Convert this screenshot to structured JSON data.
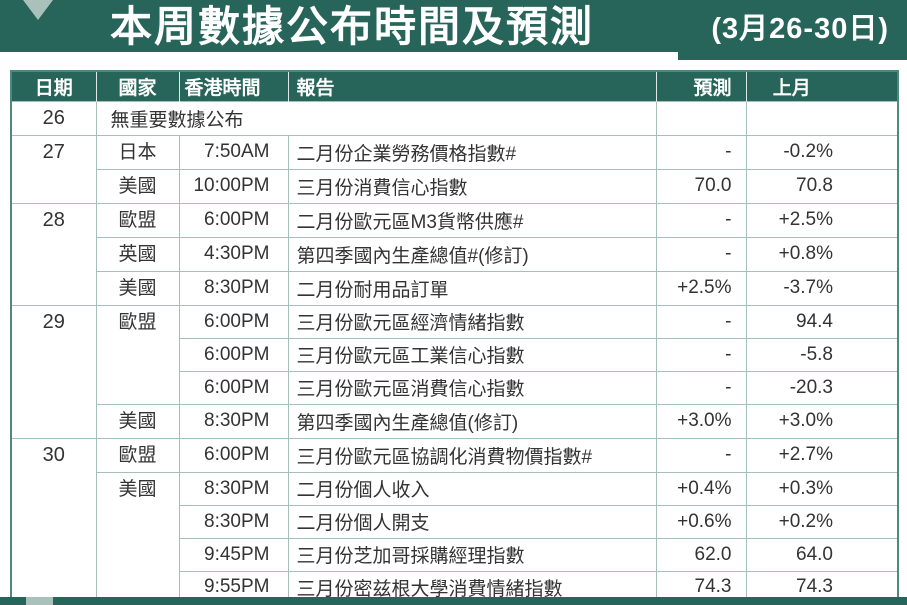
{
  "banner": {
    "title": "本周數據公布時間及預測",
    "date_range": "(3月26-30日)"
  },
  "colors": {
    "teal": "#276459",
    "sage": "#a9c0bb",
    "border": "#a3c0ba",
    "outer": "#4f887e",
    "ink": "#333333"
  },
  "table": {
    "headers": [
      {
        "key": "date",
        "label": "日期"
      },
      {
        "key": "country",
        "label": "國家"
      },
      {
        "key": "time",
        "label": "香港時間"
      },
      {
        "key": "report",
        "label": "報告"
      },
      {
        "key": "forecast",
        "label": "預測"
      },
      {
        "key": "last",
        "label": "上月"
      }
    ],
    "rows": [
      [
        {
          "kind": "date",
          "text": "26"
        },
        {
          "kind": "note",
          "text": "無重要數據公布",
          "colspan": 3
        },
        {
          "kind": "forecast",
          "text": ""
        },
        {
          "kind": "last",
          "text": ""
        }
      ],
      [
        {
          "kind": "date",
          "text": "27",
          "rowspan": 2
        },
        {
          "kind": "country",
          "text": "日本"
        },
        {
          "kind": "time",
          "text": "7:50AM"
        },
        {
          "kind": "report",
          "text": "二月份企業勞務價格指數#"
        },
        {
          "kind": "forecast",
          "text": "-"
        },
        {
          "kind": "last",
          "text": "-0.2%"
        }
      ],
      [
        {
          "kind": "country",
          "text": "美國"
        },
        {
          "kind": "time",
          "text": "10:00PM"
        },
        {
          "kind": "report",
          "text": "三月份消費信心指數"
        },
        {
          "kind": "forecast",
          "text": "70.0"
        },
        {
          "kind": "last",
          "text": "70.8"
        }
      ],
      [
        {
          "kind": "date",
          "text": "28",
          "rowspan": 3
        },
        {
          "kind": "country",
          "text": "歐盟"
        },
        {
          "kind": "time",
          "text": "6:00PM"
        },
        {
          "kind": "report",
          "text": "二月份歐元區M3貨幣供應#"
        },
        {
          "kind": "forecast",
          "text": "-"
        },
        {
          "kind": "last",
          "text": "+2.5%"
        }
      ],
      [
        {
          "kind": "country",
          "text": "英國"
        },
        {
          "kind": "time",
          "text": "4:30PM"
        },
        {
          "kind": "report",
          "text": "第四季國內生產總值#(修訂)"
        },
        {
          "kind": "forecast",
          "text": "-"
        },
        {
          "kind": "last",
          "text": "+0.8%"
        }
      ],
      [
        {
          "kind": "country",
          "text": "美國"
        },
        {
          "kind": "time",
          "text": "8:30PM"
        },
        {
          "kind": "report",
          "text": "二月份耐用品訂單"
        },
        {
          "kind": "forecast",
          "text": "+2.5%"
        },
        {
          "kind": "last",
          "text": "-3.7%"
        }
      ],
      [
        {
          "kind": "date",
          "text": "29",
          "rowspan": 4
        },
        {
          "kind": "country",
          "text": "歐盟",
          "rowspan": 3
        },
        {
          "kind": "time",
          "text": "6:00PM"
        },
        {
          "kind": "report",
          "text": "三月份歐元區經濟情緒指數"
        },
        {
          "kind": "forecast",
          "text": "-"
        },
        {
          "kind": "last",
          "text": "94.4"
        }
      ],
      [
        {
          "kind": "time",
          "text": "6:00PM"
        },
        {
          "kind": "report",
          "text": "三月份歐元區工業信心指數"
        },
        {
          "kind": "forecast",
          "text": "-"
        },
        {
          "kind": "last",
          "text": "-5.8"
        }
      ],
      [
        {
          "kind": "time",
          "text": "6:00PM"
        },
        {
          "kind": "report",
          "text": "三月份歐元區消費信心指數"
        },
        {
          "kind": "forecast",
          "text": "-"
        },
        {
          "kind": "last",
          "text": "-20.3"
        }
      ],
      [
        {
          "kind": "country",
          "text": "美國"
        },
        {
          "kind": "time",
          "text": "8:30PM"
        },
        {
          "kind": "report",
          "text": "第四季國內生產總值(修訂)"
        },
        {
          "kind": "forecast",
          "text": "+3.0%"
        },
        {
          "kind": "last",
          "text": "+3.0%"
        }
      ],
      [
        {
          "kind": "date",
          "text": "30",
          "rowspan": 5
        },
        {
          "kind": "country",
          "text": "歐盟"
        },
        {
          "kind": "time",
          "text": "6:00PM"
        },
        {
          "kind": "report",
          "text": "三月份歐元區協調化消費物價指數#"
        },
        {
          "kind": "forecast",
          "text": "-"
        },
        {
          "kind": "last",
          "text": "+2.7%"
        }
      ],
      [
        {
          "kind": "country",
          "text": "美國",
          "rowspan": 4
        },
        {
          "kind": "time",
          "text": "8:30PM"
        },
        {
          "kind": "report",
          "text": "二月份個人收入"
        },
        {
          "kind": "forecast",
          "text": "+0.4%"
        },
        {
          "kind": "last",
          "text": "+0.3%"
        }
      ],
      [
        {
          "kind": "time",
          "text": "8:30PM"
        },
        {
          "kind": "report",
          "text": "二月份個人開支"
        },
        {
          "kind": "forecast",
          "text": "+0.6%"
        },
        {
          "kind": "last",
          "text": "+0.2%"
        }
      ],
      [
        {
          "kind": "time",
          "text": "9:45PM"
        },
        {
          "kind": "report",
          "text": "三月份芝加哥採購經理指數"
        },
        {
          "kind": "forecast",
          "text": "62.0"
        },
        {
          "kind": "last",
          "text": "64.0"
        }
      ],
      [
        {
          "kind": "time",
          "text": "9:55PM"
        },
        {
          "kind": "report",
          "text": "三月份密兹根大學消費情緒指數"
        },
        {
          "kind": "forecast",
          "text": "74.3"
        },
        {
          "kind": "last",
          "text": "74.3"
        }
      ]
    ]
  }
}
